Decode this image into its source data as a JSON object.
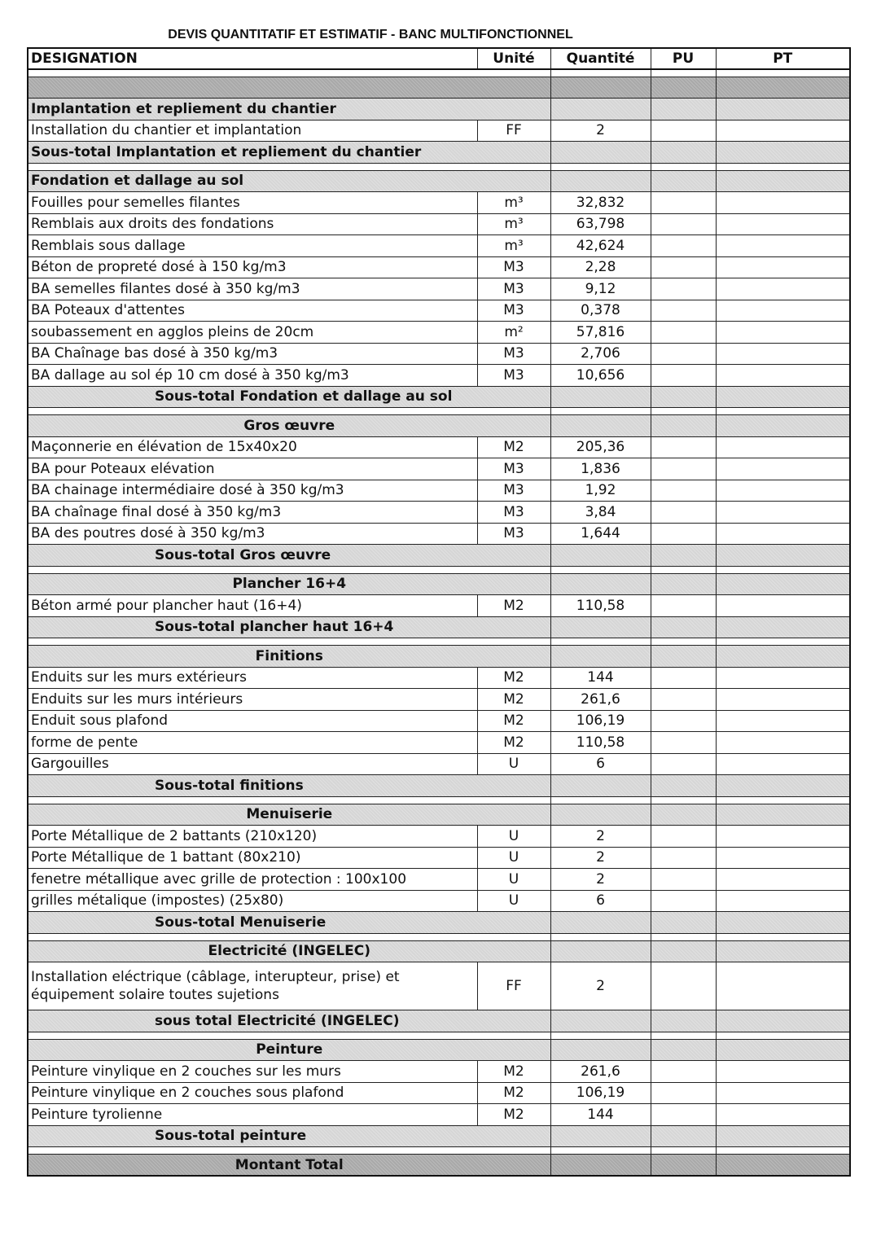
{
  "title": "DEVIS QUANTITATIF ET ESTIMATIF - BANC MULTIFONCTIONNEL",
  "columns": [
    "DESIGNATION",
    "Unité",
    "Quantité",
    "PU",
    "PT"
  ],
  "rows": [
    {
      "type": "blank"
    },
    {
      "type": "dark",
      "label": ""
    },
    {
      "type": "section",
      "label": "Implantation et repliement du chantier",
      "align": "left"
    },
    {
      "type": "item",
      "designation": "Installation du chantier et implantation",
      "unit": "FF",
      "qty": "2"
    },
    {
      "type": "subtotal",
      "label": "Sous-total Implantation et repliement du chantier",
      "align": "left"
    },
    {
      "type": "blank"
    },
    {
      "type": "section",
      "label": "Fondation et dallage au sol",
      "align": "left"
    },
    {
      "type": "item",
      "designation": "Fouilles pour semelles filantes",
      "unit": "m³",
      "qty": "32,832"
    },
    {
      "type": "item",
      "designation": "Remblais aux droits des fondations",
      "unit": "m³",
      "qty": "63,798"
    },
    {
      "type": "item",
      "designation": "Remblais sous dallage",
      "unit": "m³",
      "qty": "42,624"
    },
    {
      "type": "item",
      "designation": "Béton de propreté dosé à 150 kg/m3",
      "unit": "M3",
      "qty": "2,28"
    },
    {
      "type": "item",
      "designation": "BA semelles filantes dosé à 350 kg/m3",
      "unit": "M3",
      "qty": "9,12"
    },
    {
      "type": "item",
      "designation": "BA Poteaux d'attentes",
      "unit": "M3",
      "qty": "0,378"
    },
    {
      "type": "item",
      "designation": "soubassement en agglos pleins de 20cm",
      "unit": "m²",
      "qty": "57,816"
    },
    {
      "type": "item",
      "designation": "BA Chaînage bas dosé à 350 kg/m3",
      "unit": "M3",
      "qty": "2,706"
    },
    {
      "type": "item",
      "designation": "BA dallage au sol ép 10 cm dosé à 350 kg/m3",
      "unit": "M3",
      "qty": "10,656"
    },
    {
      "type": "subtotal",
      "label": "Sous-total Fondation et dallage au sol",
      "align": "indent"
    },
    {
      "type": "blank"
    },
    {
      "type": "section",
      "label": "Gros œuvre",
      "align": "center"
    },
    {
      "type": "item",
      "designation": "Maçonnerie en élévation de 15x40x20",
      "unit": "M2",
      "qty": "205,36"
    },
    {
      "type": "item",
      "designation": "BA pour Poteaux elévation",
      "unit": "M3",
      "qty": "1,836"
    },
    {
      "type": "item",
      "designation": "BA  chainage intermédiaire dosé à 350 kg/m3",
      "unit": "M3",
      "qty": "1,92"
    },
    {
      "type": "item",
      "designation": "BA chaînage final  dosé à 350 kg/m3",
      "unit": "M3",
      "qty": "3,84"
    },
    {
      "type": "item",
      "designation": "BA des poutres dosé à 350 kg/m3",
      "unit": "M3",
      "qty": "1,644"
    },
    {
      "type": "subtotal",
      "label": "Sous-total Gros œuvre",
      "align": "indent"
    },
    {
      "type": "blank"
    },
    {
      "type": "section",
      "label": "Plancher 16+4",
      "align": "center"
    },
    {
      "type": "item",
      "designation": "Béton armé pour plancher haut (16+4)",
      "unit": "M2",
      "qty": "110,58"
    },
    {
      "type": "subtotal",
      "label": "Sous-total plancher haut 16+4",
      "align": "indent"
    },
    {
      "type": "blank"
    },
    {
      "type": "section",
      "label": "Finitions",
      "align": "center"
    },
    {
      "type": "item",
      "designation": "Enduits  sur les murs extérieurs",
      "unit": "M2",
      "qty": "144"
    },
    {
      "type": "item",
      "designation": "Enduits  sur les murs intérieurs",
      "unit": "M2",
      "qty": "261,6"
    },
    {
      "type": "item",
      "designation": "Enduit sous plafond",
      "unit": "M2",
      "qty": "106,19"
    },
    {
      "type": "item",
      "designation": "forme de pente",
      "unit": "M2",
      "qty": "110,58"
    },
    {
      "type": "item",
      "designation": "Gargouilles",
      "unit": "U",
      "qty": "6"
    },
    {
      "type": "subtotal",
      "label": "Sous-total finitions",
      "align": "indent"
    },
    {
      "type": "blank"
    },
    {
      "type": "section",
      "label": "Menuiserie",
      "align": "center"
    },
    {
      "type": "item",
      "designation": "Porte Métallique de 2 battants (210x120)",
      "unit": "U",
      "qty": "2"
    },
    {
      "type": "item",
      "designation": "Porte Métallique de 1 battant (80x210)",
      "unit": "U",
      "qty": "2"
    },
    {
      "type": "item",
      "designation": "fenetre métallique avec grille de protection : 100x100",
      "unit": "U",
      "qty": "2"
    },
    {
      "type": "item",
      "designation": "grilles métalique (impostes) (25x80)",
      "unit": "U",
      "qty": "6"
    },
    {
      "type": "subtotal",
      "label": "Sous-total Menuiserie",
      "align": "indent"
    },
    {
      "type": "blank"
    },
    {
      "type": "section",
      "label": "Electricité (INGELEC)",
      "align": "center"
    },
    {
      "type": "tall",
      "designation": "Installation eléctrique (câblage, interupteur, prise) et équipement solaire toutes sujetions",
      "unit": "FF",
      "qty": "2"
    },
    {
      "type": "subtotal",
      "label": "sous total Electricité (INGELEC)",
      "align": "indent"
    },
    {
      "type": "blank"
    },
    {
      "type": "section",
      "label": "Peinture",
      "align": "center"
    },
    {
      "type": "item",
      "designation": "Peinture vinylique en 2 couches sur les murs",
      "unit": "M2",
      "qty": "261,6"
    },
    {
      "type": "item",
      "designation": "Peinture vinylique en 2 couches sous plafond",
      "unit": "M2",
      "qty": "106,19"
    },
    {
      "type": "item",
      "designation": "Peinture tyrolienne",
      "unit": "M2",
      "qty": "144"
    },
    {
      "type": "subtotal",
      "label": "Sous-total peinture",
      "align": "indent"
    },
    {
      "type": "blank"
    },
    {
      "type": "dark",
      "label": "Montant Total",
      "align": "center"
    }
  ]
}
